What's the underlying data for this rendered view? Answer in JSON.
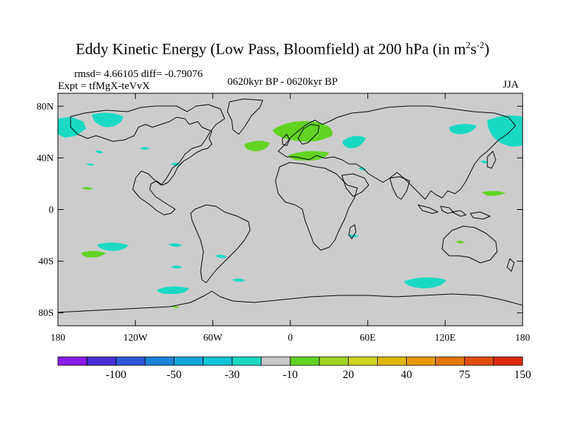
{
  "title": {
    "main": "Eddy Kinetic Energy (Low Pass, Bloomfield) at 200 hPa (in m",
    "sup1": "2",
    "mid": "s",
    "sup2": "-2",
    "end": ")"
  },
  "stats": "rmsd= 4.66105 diff= -0.79076",
  "experiment": "Expt = tfMgX-teVvX",
  "period": "0620kyr BP - 0620kyr BP",
  "season": "JJA",
  "x_ticks": [
    "180",
    "120W",
    "60W",
    "0",
    "60E",
    "120E",
    "180"
  ],
  "y_ticks": [
    "80N",
    "40N",
    "0",
    "40S",
    "80S"
  ],
  "colorbar": {
    "labels": [
      "-100",
      "-50",
      "-30",
      "-10",
      "20",
      "40",
      "75",
      "150"
    ],
    "colors": [
      "#8a1be8",
      "#4b2ed8",
      "#2a55d8",
      "#1a82d8",
      "#12a6dd",
      "#10c4d8",
      "#1ad9c4",
      "#c8c8c8",
      "#62d323",
      "#a4d320",
      "#cfd51e",
      "#e0b80c",
      "#e79a0a",
      "#e2770c",
      "#e04d10",
      "#dd2a0e"
    ]
  },
  "map_colors": {
    "background": "#cccccc",
    "positive_20": "#62d323",
    "negative_10": "#1ad9c4",
    "coast": "#000000"
  }
}
